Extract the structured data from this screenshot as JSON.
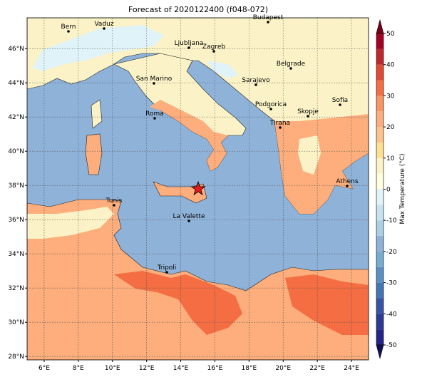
{
  "title": "Forecast of 2020122400 (f048-072)",
  "map": {
    "xlim": [
      5,
      25
    ],
    "ylim": [
      27.8,
      47.8
    ],
    "xticks": [
      {
        "value": 6,
        "label": "6°E"
      },
      {
        "value": 8,
        "label": "8°E"
      },
      {
        "value": 10,
        "label": "10°E"
      },
      {
        "value": 12,
        "label": "12°E"
      },
      {
        "value": 14,
        "label": "14°E"
      },
      {
        "value": 16,
        "label": "16°E"
      },
      {
        "value": 18,
        "label": "18°E"
      },
      {
        "value": 20,
        "label": "20°E"
      },
      {
        "value": 22,
        "label": "22°E"
      },
      {
        "value": 24,
        "label": "24°E"
      }
    ],
    "yticks": [
      {
        "value": 28,
        "label": "28°N"
      },
      {
        "value": 30,
        "label": "30°N"
      },
      {
        "value": 32,
        "label": "32°N"
      },
      {
        "value": 34,
        "label": "34°N"
      },
      {
        "value": 36,
        "label": "36°N"
      },
      {
        "value": 38,
        "label": "38°N"
      },
      {
        "value": 40,
        "label": "40°N"
      },
      {
        "value": 42,
        "label": "42°N"
      },
      {
        "value": 44,
        "label": "44°N"
      },
      {
        "value": 46,
        "label": "46°N"
      }
    ],
    "grid": true
  },
  "cities": [
    "Bern",
    "Vaduz",
    "Budapest",
    "Ljubljana",
    "Zagreb",
    "Belgrade",
    "San Marino",
    "Sarajevo",
    "Sofia",
    "Podgorica",
    "Skopje",
    "Roma",
    "Tirana",
    "Athens",
    "Tunis",
    "La Valette",
    "Tripoli"
  ],
  "colorbar": {
    "label": "Max Temperature (°C)",
    "lim": [
      -50,
      50
    ],
    "ticks": [
      50,
      40,
      30,
      20,
      10,
      0,
      -10,
      -20,
      -30,
      -40,
      -50
    ],
    "colors": [
      "#23238a",
      "#2c3a96",
      "#3953a4",
      "#4575b4",
      "#5b8fc4",
      "#74add1",
      "#8fb2d8",
      "#abd0e6",
      "#c6e3ef",
      "#e0f3f8",
      "#ffffe0",
      "#fbf3c7",
      "#fee090",
      "#fdc28a",
      "#fdae7c",
      "#f99660",
      "#f46d43",
      "#e34a33",
      "#c0272d",
      "#a50026"
    ],
    "under": "#10105c",
    "over": "#7a0018"
  }
}
